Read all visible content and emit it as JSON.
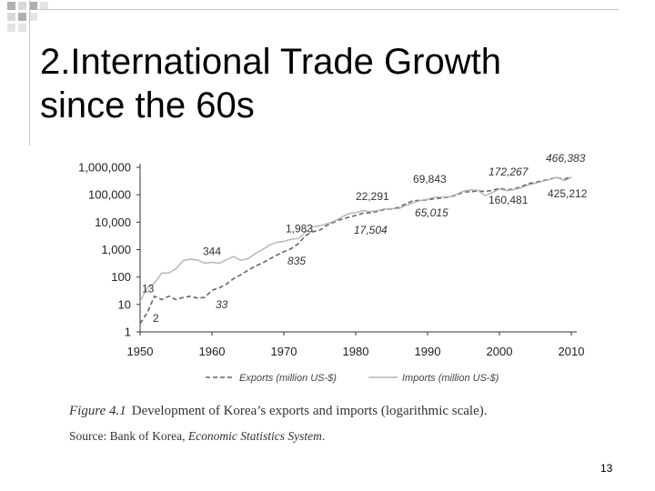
{
  "slide": {
    "title_line1": "2.International Trade Growth",
    "title_line2": "since the 60s",
    "page_number": "13"
  },
  "caption": {
    "figure_number": "Figure 4.1",
    "text": "Development of Korea’s exports and imports (logarithmic scale).",
    "source_prefix": "Source: Bank of Korea, ",
    "source_italic": "Economic Statistics System",
    "source_suffix": "."
  },
  "chart_data": {
    "type": "line",
    "title": "",
    "xlabel": "",
    "ylabel": "",
    "y_scale": "log",
    "xlim": [
      1950,
      2011
    ],
    "ylim": [
      1,
      1000000
    ],
    "x_ticks": [
      "1950",
      "1960",
      "1970",
      "1980",
      "1990",
      "2000",
      "2010"
    ],
    "y_ticks": [
      "1",
      "10",
      "100",
      "1,000",
      "10,000",
      "100,000",
      "1,000,000"
    ],
    "legend_position": "bottom",
    "grid": false,
    "series": [
      {
        "name": "Exports (million US-$)",
        "style": "dashed",
        "color": "#666666",
        "points": [
          [
            1950,
            2
          ],
          [
            1951,
            5
          ],
          [
            1952,
            20
          ],
          [
            1953,
            15
          ],
          [
            1954,
            20
          ],
          [
            1955,
            15
          ],
          [
            1956,
            18
          ],
          [
            1957,
            20
          ],
          [
            1958,
            17
          ],
          [
            1959,
            18
          ],
          [
            1960,
            33
          ],
          [
            1961,
            40
          ],
          [
            1962,
            55
          ],
          [
            1963,
            87
          ],
          [
            1964,
            120
          ],
          [
            1965,
            175
          ],
          [
            1966,
            250
          ],
          [
            1967,
            320
          ],
          [
            1968,
            455
          ],
          [
            1969,
            622
          ],
          [
            1970,
            835
          ],
          [
            1971,
            1068
          ],
          [
            1972,
            1624
          ],
          [
            1973,
            3225
          ],
          [
            1974,
            4460
          ],
          [
            1975,
            5081
          ],
          [
            1976,
            7715
          ],
          [
            1977,
            10046
          ],
          [
            1978,
            12711
          ],
          [
            1979,
            15056
          ],
          [
            1980,
            17504
          ],
          [
            1981,
            21254
          ],
          [
            1982,
            21853
          ],
          [
            1983,
            24445
          ],
          [
            1984,
            29245
          ],
          [
            1985,
            30283
          ],
          [
            1986,
            34714
          ],
          [
            1987,
            47281
          ],
          [
            1988,
            60696
          ],
          [
            1989,
            62377
          ],
          [
            1990,
            65015
          ],
          [
            1991,
            71870
          ],
          [
            1992,
            76632
          ],
          [
            1993,
            82236
          ],
          [
            1994,
            96013
          ],
          [
            1995,
            125058
          ],
          [
            1996,
            129715
          ],
          [
            1997,
            136164
          ],
          [
            1998,
            132313
          ],
          [
            1999,
            143686
          ],
          [
            2000,
            172267
          ],
          [
            2001,
            150439
          ],
          [
            2002,
            162471
          ],
          [
            2003,
            193817
          ],
          [
            2004,
            253845
          ],
          [
            2005,
            284419
          ],
          [
            2006,
            325465
          ],
          [
            2007,
            371489
          ],
          [
            2008,
            422007
          ],
          [
            2009,
            363534
          ],
          [
            2010,
            466383
          ]
        ]
      },
      {
        "name": "Imports (million US-$)",
        "style": "solid",
        "color": "#b4b4b4",
        "points": [
          [
            1950,
            13
          ],
          [
            1951,
            40
          ],
          [
            1952,
            60
          ],
          [
            1953,
            140
          ],
          [
            1954,
            140
          ],
          [
            1955,
            200
          ],
          [
            1956,
            400
          ],
          [
            1957,
            450
          ],
          [
            1958,
            420
          ],
          [
            1959,
            320
          ],
          [
            1960,
            344
          ],
          [
            1961,
            316
          ],
          [
            1962,
            422
          ],
          [
            1963,
            560
          ],
          [
            1964,
            404
          ],
          [
            1965,
            463
          ],
          [
            1966,
            716
          ],
          [
            1967,
            996
          ],
          [
            1968,
            1463
          ],
          [
            1969,
            1824
          ],
          [
            1970,
            1983
          ],
          [
            1971,
            2394
          ],
          [
            1972,
            2522
          ],
          [
            1973,
            4240
          ],
          [
            1974,
            6852
          ],
          [
            1975,
            7274
          ],
          [
            1976,
            8774
          ],
          [
            1977,
            10811
          ],
          [
            1978,
            14972
          ],
          [
            1979,
            20339
          ],
          [
            1980,
            22291
          ],
          [
            1981,
            26131
          ],
          [
            1982,
            24251
          ],
          [
            1983,
            26192
          ],
          [
            1984,
            30631
          ],
          [
            1985,
            31136
          ],
          [
            1986,
            31584
          ],
          [
            1987,
            41020
          ],
          [
            1988,
            51811
          ],
          [
            1989,
            61465
          ],
          [
            1990,
            69843
          ],
          [
            1991,
            81525
          ],
          [
            1992,
            81775
          ],
          [
            1993,
            83800
          ],
          [
            1994,
            102348
          ],
          [
            1995,
            135119
          ],
          [
            1996,
            150339
          ],
          [
            1997,
            144616
          ],
          [
            1998,
            93282
          ],
          [
            1999,
            119752
          ],
          [
            2000,
            160481
          ],
          [
            2001,
            141098
          ],
          [
            2002,
            152126
          ],
          [
            2003,
            178827
          ],
          [
            2004,
            224463
          ],
          [
            2005,
            261238
          ],
          [
            2006,
            309383
          ],
          [
            2007,
            356846
          ],
          [
            2008,
            435275
          ],
          [
            2009,
            323085
          ],
          [
            2010,
            425212
          ]
        ]
      }
    ],
    "annotations": [
      {
        "text": "13",
        "x": 1950,
        "y": 13,
        "series": "Imports (million US-$)"
      },
      {
        "text": "2",
        "x": 1950,
        "y": 2,
        "series": "Exports (million US-$)"
      },
      {
        "text": "344",
        "x": 1960,
        "y": 344,
        "series": "Imports (million US-$)"
      },
      {
        "text": "33",
        "x": 1960,
        "y": 33,
        "series": "Exports (million US-$)"
      },
      {
        "text": "1,983",
        "x": 1970,
        "y": 1983,
        "series": "Imports (million US-$)"
      },
      {
        "text": "835",
        "x": 1970,
        "y": 835,
        "series": "Exports (million US-$)"
      },
      {
        "text": "22,291",
        "x": 1980,
        "y": 22291,
        "series": "Imports (million US-$)"
      },
      {
        "text": "17,504",
        "x": 1980,
        "y": 17504,
        "series": "Exports (million US-$)"
      },
      {
        "text": "69,843",
        "x": 1990,
        "y": 69843,
        "series": "Imports (million US-$)"
      },
      {
        "text": "65,015",
        "x": 1990,
        "y": 65015,
        "series": "Exports (million US-$)"
      },
      {
        "text": "172,267",
        "x": 2000,
        "y": 172267,
        "series": "Exports (million US-$)"
      },
      {
        "text": "160,481",
        "x": 2000,
        "y": 160481,
        "series": "Imports (million US-$)"
      },
      {
        "text": "466,383",
        "x": 2010,
        "y": 466383,
        "series": "Exports (million US-$)"
      },
      {
        "text": "425,212",
        "x": 2010,
        "y": 425212,
        "series": "Imports (million US-$)"
      }
    ]
  }
}
